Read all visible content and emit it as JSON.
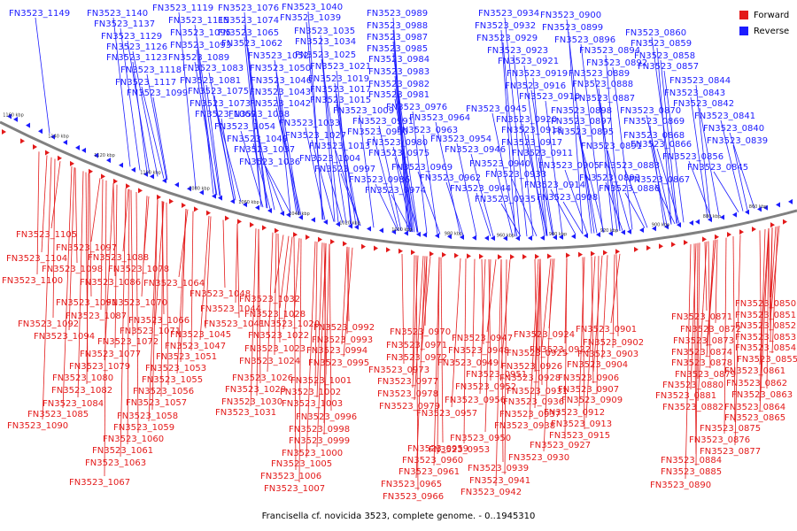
{
  "legend": {
    "forward_label": "Forward",
    "reverse_label": "Reverse",
    "forward_color": "#e31a1a",
    "reverse_color": "#1c1cff"
  },
  "caption": "Francisella cf. novicida 3523, complete genome. - 0..1945310",
  "scale_labels": [
    "1160 kbp",
    "1140 kbp",
    "1120 kbp",
    "1100 kbp",
    "1080 kbp",
    "1060 kbp",
    "1040 kbp",
    "1020 kbp",
    "1000 kbp",
    "980 kbp",
    "960 kbp",
    "940 kbp",
    "920 kbp",
    "900 kbp",
    "880 kbp",
    "860 kbp"
  ],
  "reverse_genes": [
    "FN3523_1149",
    "FN3523_1140",
    "FN3523_1137",
    "FN3523_1129",
    "FN3523_1126",
    "FN3523_1123",
    "FN3523_1119",
    "FN3523_1118",
    "FN3523_1117",
    "FN3523_1115",
    "FN3523_1099",
    "FN3523_1095",
    "FN3523_1093",
    "FN3523_1089",
    "FN3523_1083",
    "FN3523_1081",
    "FN3523_1076",
    "FN3523_1075",
    "FN3523_1074",
    "FN3523_1073",
    "FN3523_1069",
    "FN3523_1065",
    "FN3523_1062",
    "FN3523_1054",
    "FN3523_1052",
    "FN3523_1050",
    "FN3523_1049",
    "FN3523_1046",
    "FN3523_1043",
    "FN3523_1042",
    "FN3523_1040",
    "FN3523_1039",
    "FN3523_1038",
    "FN3523_1037",
    "FN3523_1036",
    "FN3523_1035",
    "FN3523_1034",
    "FN3523_1033",
    "FN3523_1027",
    "FN3523_1025",
    "FN3523_1021",
    "FN3523_1019",
    "FN3523_1017",
    "FN3523_1015",
    "FN3523_1013",
    "FN3523_1009",
    "FN3523_1004",
    "FN3523_0997",
    "FN3523_0991",
    "FN3523_0990",
    "FN3523_0989",
    "FN3523_0988",
    "FN3523_0987",
    "FN3523_0986",
    "FN3523_0985",
    "FN3523_0984",
    "FN3523_0983",
    "FN3523_0982",
    "FN3523_0981",
    "FN3523_0980",
    "FN3523_0976",
    "FN3523_0975",
    "FN3523_0974",
    "FN3523_0969",
    "FN3523_0964",
    "FN3523_0963",
    "FN3523_0962",
    "FN3523_0954",
    "FN3523_0946",
    "FN3523_0945",
    "FN3523_0944",
    "FN3523_0940",
    "FN3523_0935",
    "FN3523_0934",
    "FN3523_0933",
    "FN3523_0932",
    "FN3523_0929",
    "FN3523_0923",
    "FN3523_0921",
    "FN3523_0920",
    "FN3523_0919",
    "FN3523_0918",
    "FN3523_0917",
    "FN3523_0916",
    "FN3523_0914",
    "FN3523_0911",
    "FN3523_0910",
    "FN3523_0908",
    "FN3523_0905",
    "FN3523_0900",
    "FN3523_0899",
    "FN3523_0898",
    "FN3523_0897",
    "FN3523_0896",
    "FN3523_0895",
    "FN3523_0894",
    "FN3523_0893",
    "FN3523_0892",
    "FN3523_0891",
    "FN3523_0889",
    "FN3523_0888",
    "FN3523_0887",
    "FN3523_0886",
    "FN3523_0883",
    "FN3523_0870",
    "FN3523_0869",
    "FN3523_0868",
    "FN3523_0867",
    "FN3523_0866",
    "FN3523_0860",
    "FN3523_0859",
    "FN3523_0858",
    "FN3523_0857",
    "FN3523_0856",
    "FN3523_0845",
    "FN3523_0844",
    "FN3523_0843",
    "FN3523_0842",
    "FN3523_0841",
    "FN3523_0840",
    "FN3523_0839"
  ],
  "forward_genes": [
    "FN3523_1105",
    "FN3523_1104",
    "FN3523_1100",
    "FN3523_1098",
    "FN3523_1097",
    "FN3523_1094",
    "FN3523_1092",
    "FN3523_1091",
    "FN3523_1090",
    "FN3523_1088",
    "FN3523_1087",
    "FN3523_1086",
    "FN3523_1085",
    "FN3523_1084",
    "FN3523_1082",
    "FN3523_1080",
    "FN3523_1079",
    "FN3523_1078",
    "FN3523_1077",
    "FN3523_1072",
    "FN3523_1071",
    "FN3523_1070",
    "FN3523_1067",
    "FN3523_1066",
    "FN3523_1064",
    "FN3523_1063",
    "FN3523_1061",
    "FN3523_1060",
    "FN3523_1059",
    "FN3523_1058",
    "FN3523_1057",
    "FN3523_1056",
    "FN3523_1055",
    "FN3523_1053",
    "FN3523_1051",
    "FN3523_1048",
    "FN3523_1047",
    "FN3523_1045",
    "FN3523_1044",
    "FN3523_1041",
    "FN3523_1032",
    "FN3523_1031",
    "FN3523_1030",
    "FN3523_1029",
    "FN3523_1028",
    "FN3523_1026",
    "FN3523_1024",
    "FN3523_1023",
    "FN3523_1022",
    "FN3523_1020",
    "FN3523_1007",
    "FN3523_1006",
    "FN3523_1005",
    "FN3523_1003",
    "FN3523_1002",
    "FN3523_1001",
    "FN3523_1000",
    "FN3523_0999",
    "FN3523_0998",
    "FN3523_0996",
    "FN3523_0995",
    "FN3523_0994",
    "FN3523_0993",
    "FN3523_0992",
    "FN3523_0979",
    "FN3523_0978",
    "FN3523_0977",
    "FN3523_0973",
    "FN3523_0972",
    "FN3523_0971",
    "FN3523_0970",
    "FN3523_0966",
    "FN3523_0965",
    "FN3523_0961",
    "FN3523_0960",
    "FN3523_0959",
    "FN3523_0957",
    "FN3523_0956",
    "FN3523_0953",
    "FN3523_0952",
    "FN3523_0951",
    "FN3523_0950",
    "FN3523_0949",
    "FN3523_0948",
    "FN3523_0947",
    "FN3523_0942",
    "FN3523_0941",
    "FN3523_0939",
    "FN3523_0938",
    "FN3523_0937",
    "FN3523_0936",
    "FN3523_0931",
    "FN3523_0930",
    "FN3523_0928",
    "FN3523_0927",
    "FN3523_0926",
    "FN3523_0925",
    "FN3523_0924",
    "FN3523_0922",
    "FN3523_0915",
    "FN3523_0913",
    "FN3523_0912",
    "FN3523_0909",
    "FN3523_0907",
    "FN3523_0906",
    "FN3523_0904",
    "FN3523_0903",
    "FN3523_0902",
    "FN3523_0901",
    "FN3523_0890",
    "FN3523_0885",
    "FN3523_0884",
    "FN3523_0882",
    "FN3523_0881",
    "FN3523_0880",
    "FN3523_0879",
    "FN3523_0878",
    "FN3523_0877",
    "FN3523_0876",
    "FN3523_0875",
    "FN3523_0874",
    "FN3523_0873",
    "FN3523_0872",
    "FN3523_0871",
    "FN3523_0865",
    "FN3523_0864",
    "FN3523_0863",
    "FN3523_0862",
    "FN3523_0861",
    "FN3523_0855",
    "FN3523_0854",
    "FN3523_0853",
    "FN3523_0852",
    "FN3523_0851",
    "FN3523_0850"
  ]
}
